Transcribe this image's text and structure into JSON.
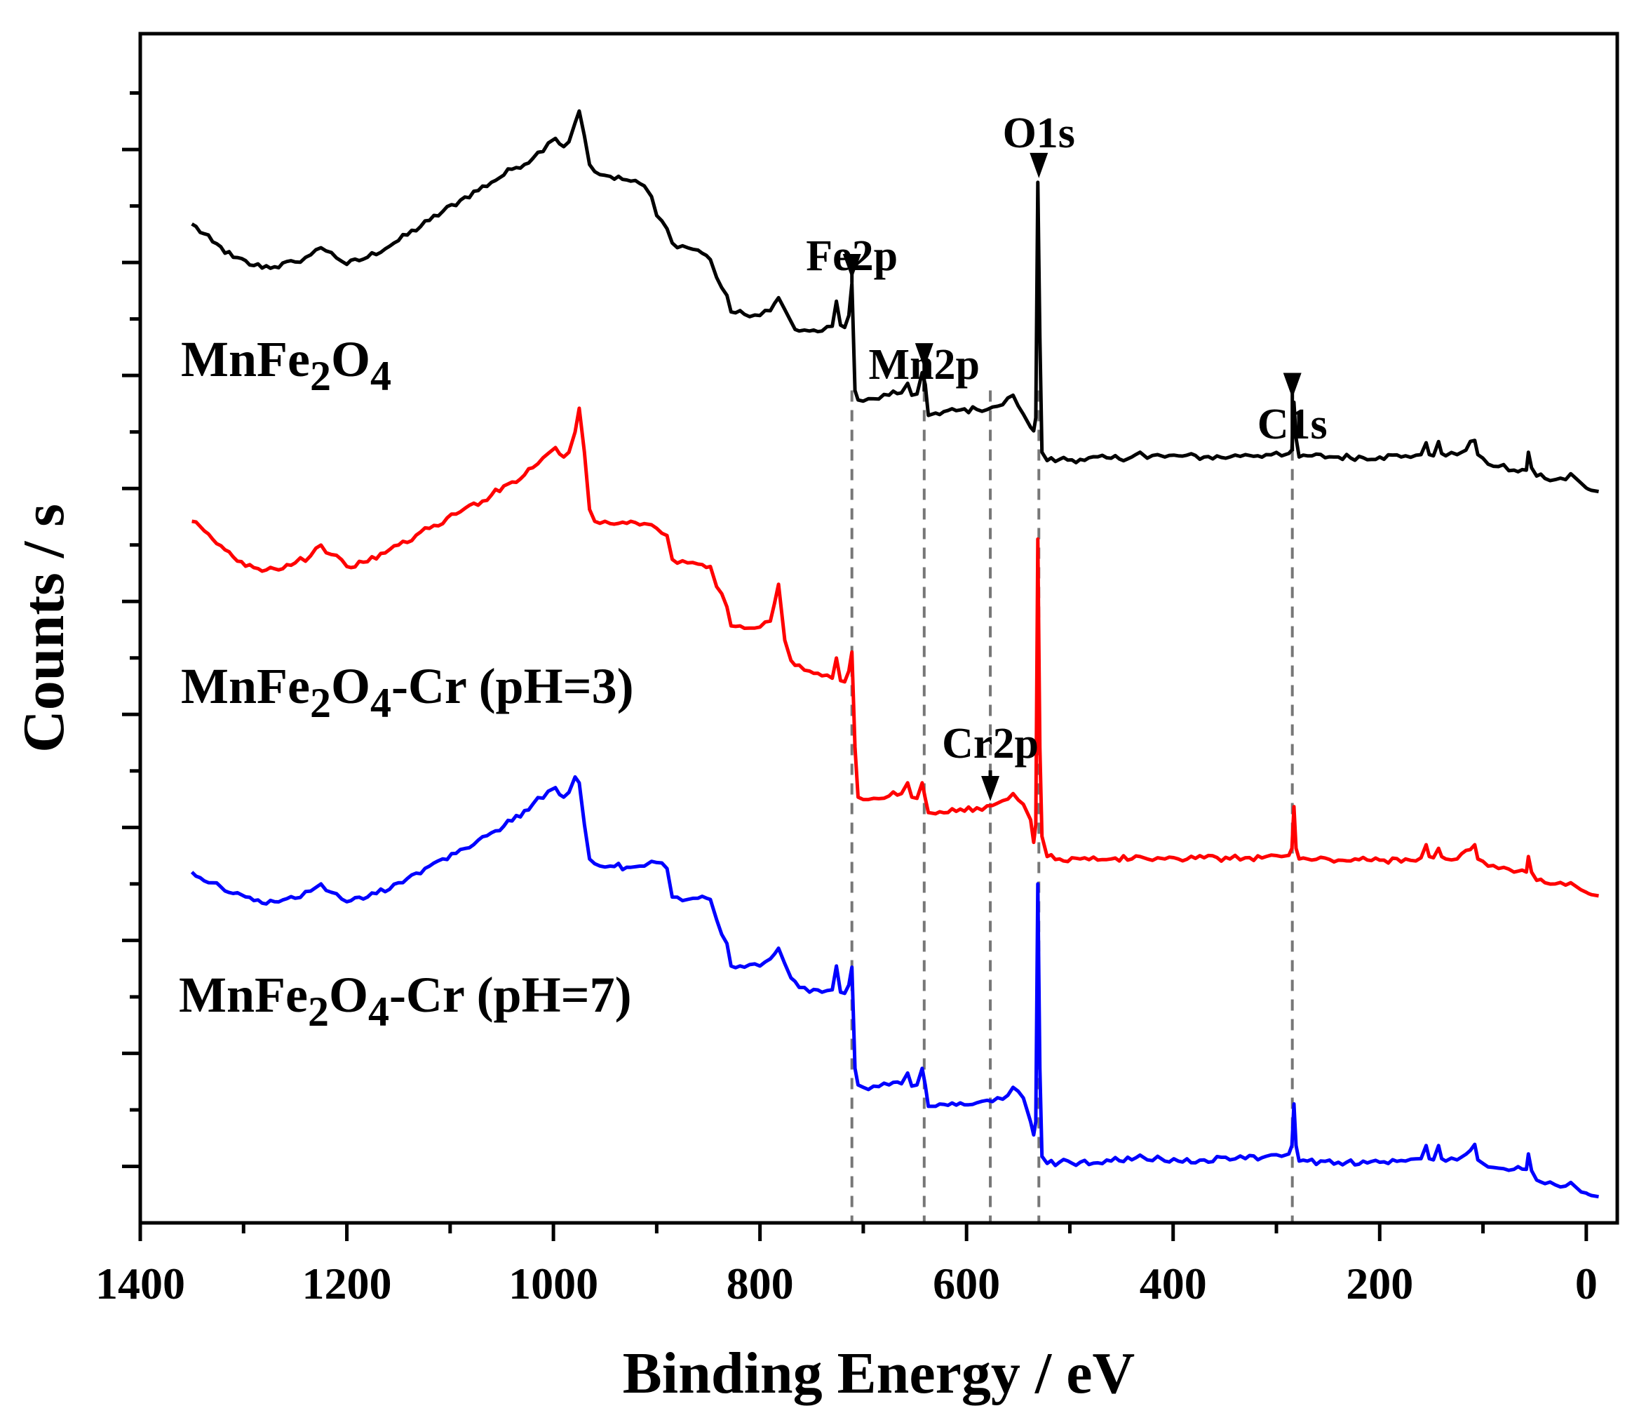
{
  "chart_data": {
    "type": "line",
    "title": "",
    "xlabel": "Binding Energy / eV",
    "ylabel": "Counts / s",
    "xlim": [
      1400,
      -30
    ],
    "ylim": [
      0,
      100
    ],
    "x_reversed": true,
    "x_ticks": [
      1400,
      1200,
      1000,
      800,
      600,
      400,
      200,
      0
    ],
    "grid": false,
    "legend": "none",
    "series": [
      {
        "name": "MnFe2O4",
        "label_parts": [
          {
            "text": "MnFe",
            "sub": false
          },
          {
            "text": "2",
            "sub": true
          },
          {
            "text": "O",
            "sub": false
          },
          {
            "text": "4",
            "sub": true
          }
        ],
        "color": "#000000",
        "x": [
          1350,
          1330,
          1310,
          1290,
          1270,
          1250,
          1235,
          1225,
          1215,
          1200,
          1180,
          1150,
          1120,
          1090,
          1060,
          1040,
          1020,
          1005,
          998,
          990,
          985,
          979,
          975,
          970,
          965,
          960,
          945,
          925,
          912,
          905,
          900,
          890,
          885,
          870,
          860,
          848,
          842,
          832,
          828,
          815,
          800,
          790,
          782,
          776,
          770,
          762,
          752,
          740,
          730,
          726,
          722,
          718,
          714,
          711,
          708,
          705,
          700,
          690,
          675,
          663,
          657,
          653,
          648,
          643,
          640,
          637,
          630,
          610,
          590,
          575,
          565,
          555,
          545,
          538,
          535,
          533,
          531,
          529,
          527,
          522,
          510,
          490,
          460,
          440,
          432,
          425,
          415,
          408,
          395,
          370,
          345,
          330,
          310,
          295,
          288,
          285,
          283,
          281,
          278,
          270,
          240,
          200,
          175,
          160,
          155,
          152,
          148,
          143,
          140,
          136,
          125,
          108,
          105,
          100,
          95,
          85,
          70,
          58,
          56,
          53,
          48,
          40,
          30,
          20,
          15,
          10,
          5,
          0,
          -2,
          -5,
          -12
        ],
        "y": [
          84.0,
          82.5,
          81.2,
          80.5,
          80.4,
          80.8,
          81.4,
          82.0,
          81.6,
          80.6,
          81.2,
          82.6,
          84.3,
          86.0,
          87.5,
          88.6,
          89.5,
          90.8,
          91.2,
          90.5,
          90.9,
          92.5,
          93.5,
          91.4,
          89.0,
          88.4,
          88.0,
          87.6,
          87.2,
          86.3,
          84.7,
          83.6,
          82.4,
          82.0,
          81.8,
          81.0,
          79.5,
          78.0,
          76.6,
          76.4,
          76.3,
          76.7,
          77.8,
          76.8,
          75.8,
          75.0,
          75.0,
          75.0,
          75.4,
          77.5,
          75.5,
          75.3,
          76.3,
          79.0,
          70.0,
          69.2,
          69.1,
          69.3,
          69.6,
          69.8,
          70.6,
          69.6,
          69.7,
          71.5,
          70.5,
          67.9,
          68.1,
          68.3,
          68.4,
          68.6,
          68.8,
          69.6,
          68.0,
          66.9,
          66.6,
          67.7,
          87.5,
          74.5,
          64.8,
          64.1,
          64.2,
          64.2,
          64.3,
          64.4,
          64.8,
          64.3,
          64.6,
          64.4,
          64.5,
          64.4,
          64.4,
          64.6,
          64.6,
          64.5,
          64.7,
          65.0,
          69.0,
          66.0,
          64.4,
          64.5,
          64.4,
          64.4,
          64.5,
          64.6,
          65.6,
          64.6,
          64.5,
          65.7,
          64.7,
          64.5,
          64.6,
          65.8,
          64.6,
          64.3,
          63.8,
          63.6,
          63.3,
          63.3,
          64.8,
          63.5,
          62.8,
          62.6,
          62.5,
          62.5,
          63.0,
          62.6,
          62.2,
          61.8,
          61.7,
          61.6,
          61.5
        ]
      },
      {
        "name": "MnFe2O4-Cr (pH=3)",
        "label_parts": [
          {
            "text": "MnFe",
            "sub": false
          },
          {
            "text": "2",
            "sub": true
          },
          {
            "text": "O",
            "sub": false
          },
          {
            "text": "4",
            "sub": true
          },
          {
            "text": "-Cr (pH=3)",
            "sub": false
          }
        ],
        "color": "#ff0000",
        "x": [
          1350,
          1330,
          1310,
          1290,
          1270,
          1250,
          1235,
          1225,
          1215,
          1200,
          1180,
          1150,
          1120,
          1090,
          1060,
          1040,
          1020,
          1005,
          998,
          990,
          985,
          979,
          975,
          970,
          965,
          960,
          945,
          925,
          912,
          905,
          900,
          890,
          885,
          870,
          860,
          848,
          842,
          832,
          828,
          815,
          800,
          790,
          782,
          776,
          770,
          762,
          752,
          740,
          730,
          726,
          722,
          718,
          714,
          711,
          708,
          705,
          700,
          690,
          675,
          663,
          657,
          653,
          648,
          643,
          640,
          637,
          630,
          610,
          590,
          575,
          565,
          555,
          545,
          538,
          535,
          533,
          531,
          529,
          527,
          522,
          510,
          490,
          460,
          440,
          432,
          425,
          415,
          408,
          395,
          370,
          345,
          330,
          310,
          295,
          288,
          285,
          283,
          281,
          278,
          270,
          240,
          200,
          175,
          160,
          155,
          152,
          148,
          143,
          140,
          136,
          125,
          108,
          105,
          100,
          95,
          85,
          70,
          58,
          56,
          53,
          48,
          40,
          30,
          20,
          15,
          10,
          5,
          0,
          -2,
          -5,
          -12
        ],
        "y": [
          59.0,
          57.5,
          56.0,
          55.1,
          55.0,
          55.5,
          56.1,
          57.0,
          56.2,
          55.2,
          55.6,
          57.0,
          58.4,
          59.8,
          61.2,
          62.3,
          63.5,
          64.7,
          65.2,
          64.4,
          64.8,
          66.5,
          68.5,
          64.8,
          60.0,
          59.0,
          58.8,
          59.0,
          58.8,
          58.7,
          58.4,
          57.8,
          55.8,
          55.5,
          55.4,
          55.2,
          53.5,
          51.8,
          50.2,
          50.0,
          50.1,
          50.6,
          53.7,
          49.0,
          47.3,
          46.9,
          46.4,
          46.0,
          45.8,
          47.5,
          45.6,
          45.5,
          46.4,
          48.0,
          40.0,
          35.8,
          35.6,
          35.7,
          35.9,
          36.1,
          37.0,
          35.8,
          35.7,
          37.0,
          35.7,
          34.5,
          34.4,
          34.6,
          34.9,
          35.1,
          35.5,
          36.1,
          35.2,
          33.9,
          32.0,
          33.5,
          57.5,
          40.0,
          32.5,
          30.8,
          30.6,
          30.6,
          30.6,
          30.6,
          30.8,
          30.6,
          30.7,
          30.6,
          30.6,
          30.7,
          30.6,
          30.7,
          30.8,
          30.8,
          30.9,
          31.5,
          35.0,
          31.5,
          30.6,
          30.6,
          30.5,
          30.5,
          30.6,
          30.7,
          31.8,
          30.8,
          30.7,
          31.5,
          30.8,
          30.6,
          30.6,
          31.8,
          30.6,
          30.4,
          30.0,
          29.8,
          29.5,
          29.5,
          30.8,
          29.5,
          28.8,
          28.6,
          28.5,
          28.4,
          28.6,
          28.3,
          28.0,
          27.8,
          27.7,
          27.6,
          27.5
        ]
      },
      {
        "name": "MnFe2O4-Cr (pH=7)",
        "label_parts": [
          {
            "text": "MnFe",
            "sub": false
          },
          {
            "text": "2",
            "sub": true
          },
          {
            "text": "O",
            "sub": false
          },
          {
            "text": "4",
            "sub": true
          },
          {
            "text": "-Cr (pH=7)",
            "sub": false
          }
        ],
        "color": "#0000ff",
        "x": [
          1350,
          1330,
          1310,
          1290,
          1270,
          1250,
          1235,
          1225,
          1215,
          1200,
          1180,
          1150,
          1120,
          1090,
          1060,
          1040,
          1020,
          1005,
          998,
          990,
          985,
          979,
          975,
          970,
          965,
          960,
          945,
          925,
          912,
          905,
          900,
          890,
          885,
          870,
          860,
          848,
          842,
          832,
          828,
          815,
          800,
          790,
          782,
          776,
          770,
          762,
          752,
          740,
          730,
          726,
          722,
          718,
          714,
          711,
          708,
          705,
          700,
          690,
          675,
          663,
          657,
          653,
          648,
          643,
          640,
          637,
          630,
          610,
          590,
          575,
          565,
          555,
          545,
          538,
          535,
          533,
          531,
          529,
          527,
          522,
          510,
          490,
          460,
          440,
          432,
          425,
          415,
          408,
          395,
          370,
          345,
          330,
          310,
          295,
          288,
          285,
          283,
          281,
          278,
          270,
          240,
          200,
          175,
          160,
          155,
          152,
          148,
          143,
          140,
          136,
          125,
          108,
          105,
          100,
          95,
          85,
          70,
          58,
          56,
          53,
          48,
          40,
          30,
          20,
          15,
          10,
          5,
          0,
          -2,
          -5,
          -12
        ],
        "y": [
          29.5,
          28.6,
          27.7,
          27.1,
          27.0,
          27.3,
          27.9,
          28.5,
          27.8,
          27.0,
          27.4,
          28.6,
          30.0,
          31.4,
          32.8,
          33.8,
          35.2,
          36.3,
          36.6,
          35.8,
          36.2,
          37.5,
          37.0,
          33.5,
          30.6,
          30.2,
          30.0,
          29.9,
          30.0,
          30.4,
          30.3,
          29.8,
          27.4,
          27.2,
          27.3,
          27.2,
          25.5,
          23.5,
          21.6,
          21.5,
          21.6,
          22.2,
          23.1,
          21.8,
          20.6,
          19.8,
          19.4,
          19.4,
          19.6,
          21.6,
          19.4,
          19.3,
          20.0,
          21.5,
          13.0,
          11.6,
          11.4,
          11.5,
          11.6,
          11.7,
          12.6,
          11.5,
          11.6,
          13.0,
          11.6,
          9.8,
          9.8,
          9.9,
          10.1,
          10.2,
          10.4,
          11.4,
          10.5,
          8.5,
          7.4,
          8.5,
          28.5,
          13.0,
          5.6,
          5.0,
          5.1,
          5.1,
          5.2,
          5.3,
          5.7,
          5.3,
          5.6,
          5.2,
          5.2,
          5.3,
          5.3,
          5.4,
          5.6,
          5.6,
          5.8,
          6.5,
          10.0,
          6.5,
          5.2,
          5.2,
          5.1,
          5.1,
          5.2,
          5.4,
          6.5,
          5.4,
          5.3,
          6.5,
          5.4,
          5.2,
          5.3,
          6.6,
          5.3,
          5.0,
          4.7,
          4.6,
          4.5,
          4.5,
          5.8,
          4.4,
          3.6,
          3.3,
          3.2,
          3.1,
          3.4,
          3.0,
          2.6,
          2.5,
          2.4,
          2.3,
          2.2
        ]
      }
    ],
    "reference_lines": [
      {
        "name": "Fe2p",
        "x": 711,
        "style": "dashed"
      },
      {
        "name": "Mn2p",
        "x": 641,
        "style": "dashed"
      },
      {
        "name": "Cr2p",
        "x": 577,
        "style": "dashed"
      },
      {
        "name": "O1s",
        "x": 530,
        "style": "dashed"
      },
      {
        "name": "C1s",
        "x": 284.6,
        "style": "dashed"
      }
    ],
    "annotations": [
      {
        "text": "O1s",
        "x": 530,
        "arrow_tip_y": 87.5
      },
      {
        "text": "Fe2p",
        "x": 711,
        "arrow_tip_y": 79.0
      },
      {
        "text": "Mn2p",
        "x": 641,
        "arrow_tip_y": 71.5
      },
      {
        "text": "C1s",
        "x": 284.6,
        "arrow_tip_y": 69.0
      },
      {
        "text": "Cr2p",
        "x": 577,
        "arrow_tip_y": 35.1
      }
    ]
  }
}
